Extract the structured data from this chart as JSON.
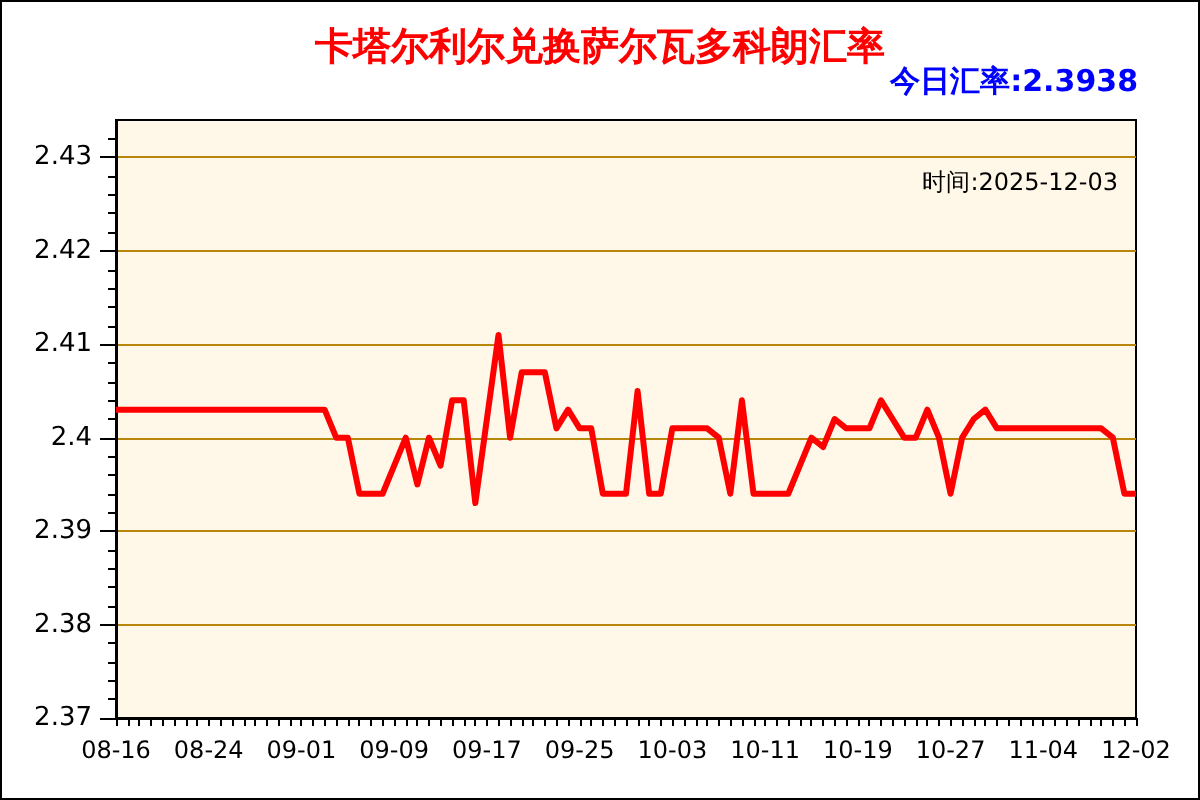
{
  "chart_data": {
    "type": "line",
    "title": "卡塔尔利尔兑换萨尔瓦多科朗汇率",
    "annotations": [
      "今日汇率:2.3938",
      "时间:2025-12-03"
    ],
    "categories": [
      "08-16",
      null,
      null,
      null,
      null,
      null,
      null,
      null,
      "08-24",
      null,
      null,
      null,
      null,
      null,
      null,
      null,
      "09-01",
      null,
      null,
      null,
      null,
      null,
      null,
      null,
      "09-09",
      null,
      null,
      null,
      null,
      null,
      null,
      null,
      "09-17",
      null,
      null,
      null,
      null,
      null,
      null,
      null,
      "09-25",
      null,
      null,
      null,
      null,
      null,
      null,
      null,
      "10-03",
      null,
      null,
      null,
      null,
      null,
      null,
      null,
      "10-11",
      null,
      null,
      null,
      null,
      null,
      null,
      null,
      "10-19",
      null,
      null,
      null,
      null,
      null,
      null,
      null,
      "10-27",
      null,
      null,
      null,
      null,
      null,
      null,
      null,
      "11-04",
      null,
      null,
      null,
      null,
      null,
      null,
      null,
      "12-02"
    ],
    "series": [
      {
        "color": "#ff0000",
        "values": [
          2.403,
          2.403,
          2.403,
          2.403,
          2.403,
          2.403,
          2.403,
          2.403,
          2.403,
          2.403,
          2.403,
          2.403,
          2.403,
          2.403,
          2.403,
          2.403,
          2.403,
          2.403,
          2.403,
          2.4,
          2.4,
          2.394,
          2.394,
          2.394,
          2.397,
          2.4,
          2.395,
          2.4,
          2.397,
          2.404,
          2.404,
          2.393,
          2.402,
          2.411,
          2.4,
          2.407,
          2.407,
          2.407,
          2.401,
          2.403,
          2.401,
          2.401,
          2.394,
          2.394,
          2.394,
          2.405,
          2.394,
          2.394,
          2.401,
          2.401,
          2.401,
          2.401,
          2.4,
          2.394,
          2.404,
          2.394,
          2.394,
          2.394,
          2.394,
          2.397,
          2.4,
          2.399,
          2.402,
          2.401,
          2.401,
          2.401,
          2.404,
          2.402,
          2.4,
          2.4,
          2.403,
          2.4,
          2.394,
          2.4,
          2.402,
          2.403,
          2.401,
          2.401,
          2.401,
          2.401,
          2.401,
          2.401,
          2.401,
          2.401,
          2.401,
          2.401,
          2.4,
          2.394,
          2.394
        ]
      }
    ],
    "ylim": [
      2.37,
      2.434
    ],
    "yticks": [
      2.37,
      2.38,
      2.39,
      2.4,
      2.41,
      2.42,
      2.43
    ],
    "grid": "y",
    "marker": "none",
    "line_style": "solid"
  }
}
